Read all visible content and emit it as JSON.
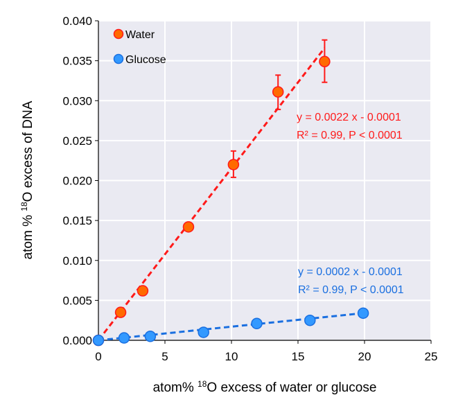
{
  "chart_data": {
    "type": "scatter",
    "xlabel_pre": "atom% ",
    "xlabel_sup": "18",
    "xlabel_post": "O  excess of water or glucose",
    "ylabel_pre": "atom % ",
    "ylabel_sup": "18",
    "ylabel_post": "O excess of DNA",
    "xlim": [
      0,
      25
    ],
    "ylim": [
      0,
      0.04
    ],
    "xticks": [
      0,
      5,
      10,
      15,
      20,
      25
    ],
    "yticks": [
      "0.000",
      "0.005",
      "0.010",
      "0.015",
      "0.020",
      "0.025",
      "0.030",
      "0.035",
      "0.040"
    ],
    "grid": true,
    "legend_position": "top-left",
    "series": [
      {
        "name": "Water",
        "color": "#ff6a00",
        "edge": "#ff1a1a",
        "line_color": "#ff1a1a",
        "x": [
          0,
          1.67,
          3.33,
          6.77,
          10.15,
          13.5,
          17.0
        ],
        "y": [
          0,
          0.0035,
          0.0062,
          0.0142,
          0.022,
          0.0311,
          0.0349
        ],
        "err_low": [
          null,
          null,
          null,
          null,
          0.0204,
          0.0289,
          0.0323
        ],
        "err_high": [
          null,
          null,
          null,
          null,
          0.0237,
          0.0332,
          0.0376
        ],
        "fit": {
          "x": [
            0,
            17.0
          ],
          "y": [
            0,
            0.0366
          ]
        },
        "eq": "y = 0.0022 x - 0.0001",
        "r2": "R² = 0.99, P < 0.0001"
      },
      {
        "name": "Glucose",
        "color": "#3399ff",
        "edge": "#1a6fe0",
        "line_color": "#1a6fe0",
        "x": [
          0,
          1.93,
          3.9,
          7.9,
          11.9,
          15.9,
          19.9
        ],
        "y": [
          0,
          0.0003,
          0.0005,
          0.001,
          0.0021,
          0.0025,
          0.0034
        ],
        "fit": {
          "x": [
            0,
            19.9
          ],
          "y": [
            0,
            0.0034
          ]
        },
        "eq": "y = 0.0002 x - 0.0001",
        "r2": "R² = 0.99, P < 0.0001"
      }
    ]
  }
}
